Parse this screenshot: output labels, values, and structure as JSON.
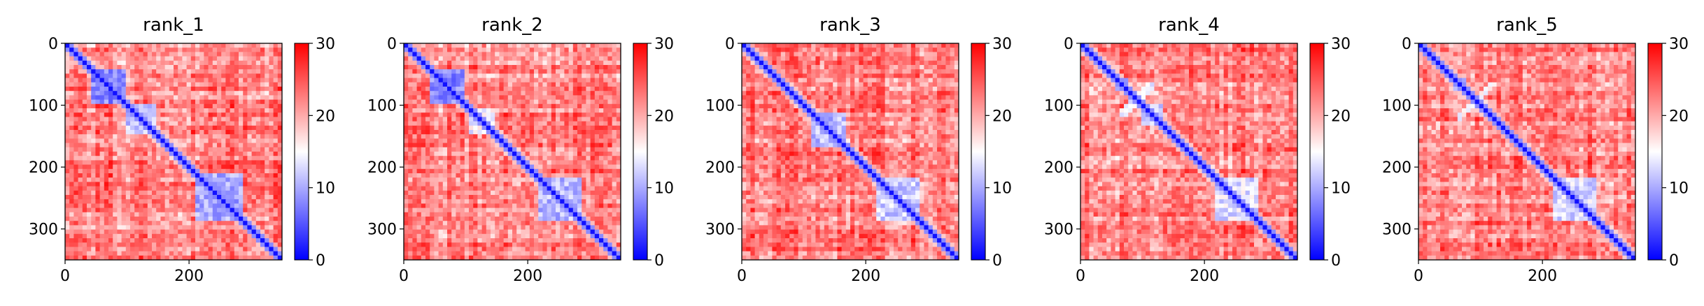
{
  "figure": {
    "colorscale": {
      "low": "#0000ff",
      "mid": "#ffffff",
      "high": "#ff0000"
    }
  },
  "chart_data": [
    {
      "type": "heatmap",
      "title": "rank_1",
      "xlim": [
        0,
        350
      ],
      "ylim": [
        350,
        0
      ],
      "xticks": [
        0,
        200
      ],
      "yticks": [
        0,
        100,
        200,
        300
      ],
      "colorbar": {
        "range": [
          0,
          30
        ],
        "ticks": [
          0,
          10,
          20,
          30
        ]
      },
      "features": [
        {
          "kind": "block",
          "start": 40,
          "end": 100,
          "value": 5
        },
        {
          "kind": "block",
          "start": 100,
          "end": 145,
          "value": 9
        },
        {
          "kind": "block",
          "start": 210,
          "end": 290,
          "value": 7
        },
        {
          "kind": "cross",
          "a": 48,
          "b": 90,
          "value": 8
        },
        {
          "kind": "cross",
          "a": 110,
          "b": 140,
          "value": 11
        },
        {
          "kind": "cross",
          "a": 230,
          "b": 280,
          "value": 11
        }
      ]
    },
    {
      "type": "heatmap",
      "title": "rank_2",
      "xlim": [
        0,
        350
      ],
      "ylim": [
        350,
        0
      ],
      "xticks": [
        0,
        200
      ],
      "yticks": [
        0,
        100,
        200,
        300
      ],
      "colorbar": {
        "range": [
          0,
          30
        ],
        "ticks": [
          0,
          10,
          20,
          30
        ]
      },
      "features": [
        {
          "kind": "block",
          "start": 40,
          "end": 100,
          "value": 5
        },
        {
          "kind": "block",
          "start": 105,
          "end": 145,
          "value": 11
        },
        {
          "kind": "block",
          "start": 215,
          "end": 290,
          "value": 8
        },
        {
          "kind": "cross",
          "a": 48,
          "b": 90,
          "value": 9
        },
        {
          "kind": "cross",
          "a": 230,
          "b": 280,
          "value": 12
        }
      ]
    },
    {
      "type": "heatmap",
      "title": "rank_3",
      "xlim": [
        0,
        350
      ],
      "ylim": [
        350,
        0
      ],
      "xticks": [
        0,
        200
      ],
      "yticks": [
        0,
        100,
        200,
        300
      ],
      "colorbar": {
        "range": [
          0,
          30
        ],
        "ticks": [
          0,
          10,
          20,
          30
        ]
      },
      "features": [
        {
          "kind": "block",
          "start": 110,
          "end": 170,
          "value": 8
        },
        {
          "kind": "block",
          "start": 220,
          "end": 290,
          "value": 9
        },
        {
          "kind": "cross",
          "a": 120,
          "b": 160,
          "value": 12
        },
        {
          "kind": "cross",
          "a": 230,
          "b": 285,
          "value": 13
        }
      ]
    },
    {
      "type": "heatmap",
      "title": "rank_4",
      "xlim": [
        0,
        350
      ],
      "ylim": [
        350,
        0
      ],
      "xticks": [
        0,
        200
      ],
      "yticks": [
        0,
        100,
        200,
        300
      ],
      "colorbar": {
        "range": [
          0,
          30
        ],
        "ticks": [
          0,
          10,
          20,
          30
        ]
      },
      "features": [
        {
          "kind": "block",
          "start": 55,
          "end": 80,
          "value": 8
        },
        {
          "kind": "block",
          "start": 100,
          "end": 130,
          "value": 10
        },
        {
          "kind": "block",
          "start": 220,
          "end": 290,
          "value": 10
        },
        {
          "kind": "cross",
          "a": 60,
          "b": 120,
          "value": 12
        }
      ]
    },
    {
      "type": "heatmap",
      "title": "rank_5",
      "xlim": [
        0,
        350
      ],
      "ylim": [
        350,
        0
      ],
      "xticks": [
        0,
        200
      ],
      "yticks": [
        0,
        100,
        200,
        300
      ],
      "colorbar": {
        "range": [
          0,
          30
        ],
        "ticks": [
          0,
          10,
          20,
          30
        ]
      },
      "features": [
        {
          "kind": "block",
          "start": 55,
          "end": 75,
          "value": 9
        },
        {
          "kind": "block",
          "start": 220,
          "end": 290,
          "value": 10
        },
        {
          "kind": "cross",
          "a": 60,
          "b": 125,
          "value": 13
        },
        {
          "kind": "cross",
          "a": 230,
          "b": 275,
          "value": 12
        }
      ]
    }
  ]
}
